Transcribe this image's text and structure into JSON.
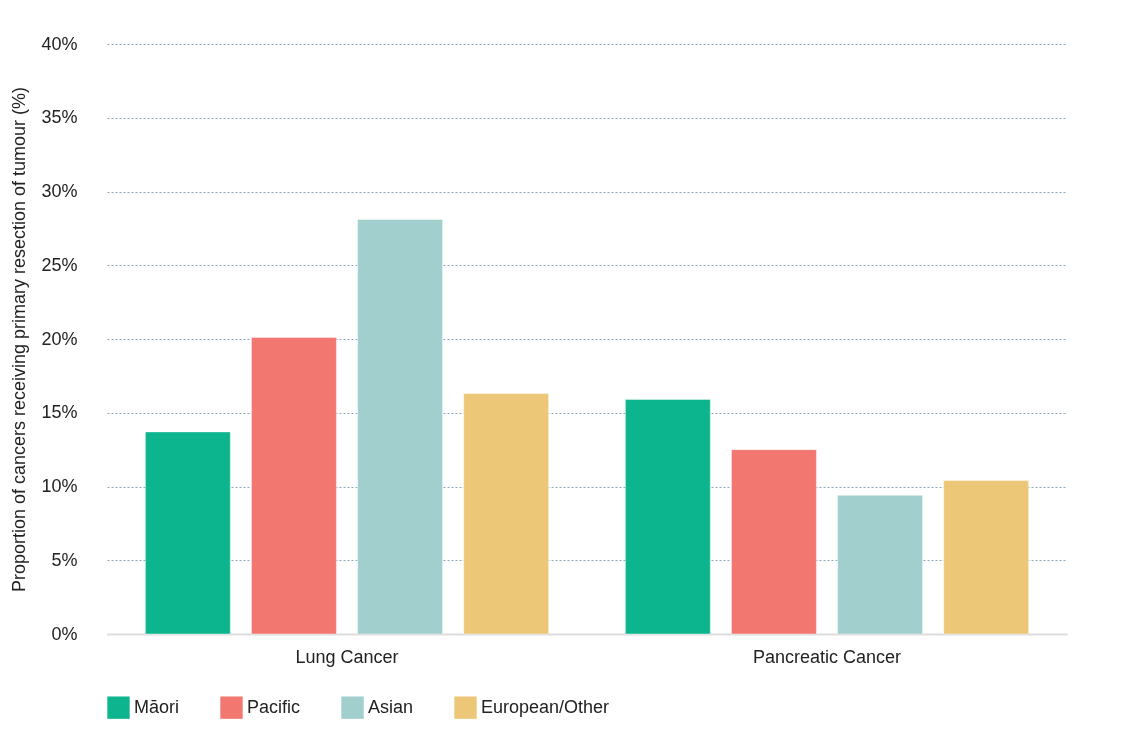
{
  "chart_data": {
    "type": "bar",
    "ylabel": "Proportion of cancers receiving primary resection of tumour (%)",
    "categories": [
      "Lung Cancer",
      "Pancreatic Cancer"
    ],
    "series": [
      {
        "name": "Māori",
        "color": "#0db58f",
        "values": [
          13.7,
          15.9
        ]
      },
      {
        "name": "Pacific",
        "color": "#f27770",
        "values": [
          20.1,
          12.5
        ]
      },
      {
        "name": "Asian",
        "color": "#a0cfcd",
        "values": [
          28.1,
          9.4
        ]
      },
      {
        "name": "European/Other",
        "color": "#ecc778",
        "values": [
          16.3,
          10.4
        ]
      }
    ],
    "ylim": [
      0,
      40
    ],
    "yticks": [
      {
        "value": 0,
        "label": "0%"
      },
      {
        "value": 5,
        "label": "5%"
      },
      {
        "value": 10,
        "label": "10%"
      },
      {
        "value": 15,
        "label": "15%"
      },
      {
        "value": 20,
        "label": "20%"
      },
      {
        "value": 25,
        "label": "25%"
      },
      {
        "value": 30,
        "label": "30%"
      },
      {
        "value": 35,
        "label": "35%"
      },
      {
        "value": 40,
        "label": "40%"
      }
    ],
    "grid": "y",
    "legend": "bottom"
  }
}
